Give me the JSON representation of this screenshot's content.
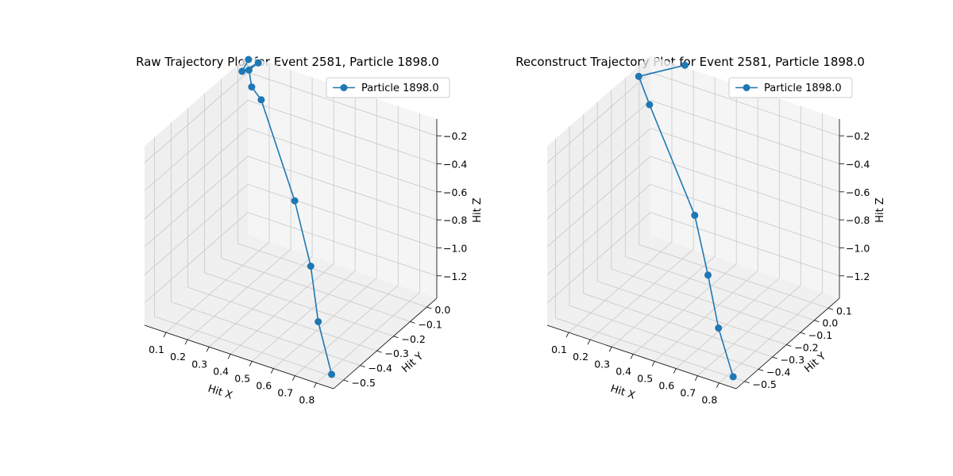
{
  "colors": {
    "series": "#1f77b4",
    "pane_light": "#f2f2f2",
    "pane_mid": "#e9e9e9",
    "pane_dark": "#e3e3e3",
    "grid": "#c8c8c8"
  },
  "chart_data": [
    {
      "type": "scatter",
      "projection": "3d",
      "title": "Raw Trajectory Plot for Event 2581, Particle 1898.0",
      "xlabel": "Hit X",
      "ylabel": "Hit Y",
      "zlabel": "Hit Z",
      "xticks": [
        "0.1",
        "0.2",
        "0.3",
        "0.4",
        "0.5",
        "0.6",
        "0.7",
        "0.8"
      ],
      "yticks": [
        "0.0",
        "−0.1",
        "−0.2",
        "−0.3",
        "−0.4",
        "−0.5"
      ],
      "zticks": [
        "−0.2",
        "−0.4",
        "−0.6",
        "−0.8",
        "−1.0",
        "−1.2"
      ],
      "legend": "top-right",
      "grid": true,
      "series": [
        {
          "name": "Particle 1898.0",
          "marker": "circle",
          "line": true,
          "points": [
            {
              "x": 0.05,
              "y": 0.0,
              "z": -0.02
            },
            {
              "x": 0.02,
              "y": 0.0,
              "z": -0.12
            },
            {
              "x": 0.08,
              "y": 0.02,
              "z": -0.05
            },
            {
              "x": 0.06,
              "y": -0.01,
              "z": -0.08
            },
            {
              "x": 0.08,
              "y": -0.02,
              "z": -0.18
            },
            {
              "x": 0.14,
              "y": -0.04,
              "z": -0.22
            },
            {
              "x": 0.42,
              "y": -0.2,
              "z": -0.63
            },
            {
              "x": 0.58,
              "y": -0.31,
              "z": -0.9
            },
            {
              "x": 0.7,
              "y": -0.42,
              "z": -1.12
            },
            {
              "x": 0.84,
              "y": -0.52,
              "z": -1.32
            }
          ]
        }
      ]
    },
    {
      "type": "scatter",
      "projection": "3d",
      "title": "Reconstruct Trajectory Plot for Event 2581, Particle 1898.0",
      "xlabel": "Hit X",
      "ylabel": "Hit Y",
      "zlabel": "Hit Z",
      "xticks": [
        "0.1",
        "0.2",
        "0.3",
        "0.4",
        "0.5",
        "0.6",
        "0.7",
        "0.8"
      ],
      "yticks": [
        "0.1",
        "0.0",
        "−0.1",
        "−0.2",
        "−0.3",
        "−0.4",
        "−0.5"
      ],
      "zticks": [
        "−0.2",
        "−0.4",
        "−0.6",
        "−0.8",
        "−1.0",
        "−1.2"
      ],
      "legend": "top-right",
      "grid": true,
      "series": [
        {
          "name": "Particle 1898.0",
          "marker": "circle",
          "line": true,
          "points": [
            {
              "x": 0.18,
              "y": 0.15,
              "z": -0.03
            },
            {
              "x": 0.03,
              "y": 0.05,
              "z": -0.1
            },
            {
              "x": 0.1,
              "y": 0.02,
              "z": -0.24
            },
            {
              "x": 0.44,
              "y": -0.18,
              "z": -0.68
            },
            {
              "x": 0.58,
              "y": -0.3,
              "z": -0.93
            },
            {
              "x": 0.7,
              "y": -0.41,
              "z": -1.15
            },
            {
              "x": 0.84,
              "y": -0.52,
              "z": -1.33
            }
          ]
        }
      ]
    }
  ]
}
